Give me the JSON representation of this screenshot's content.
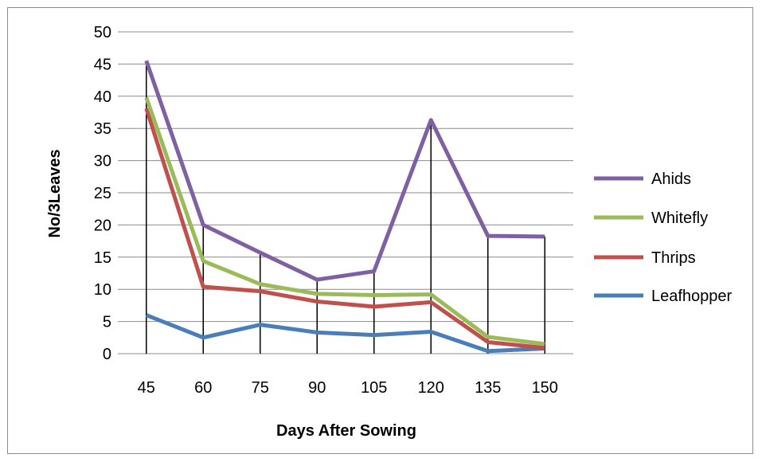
{
  "chart_data": {
    "type": "line",
    "title": "",
    "xlabel": "Days After Sowing",
    "ylabel": "No/3Leaves",
    "categories": [
      "45",
      "60",
      "75",
      "90",
      "105",
      "120",
      "135",
      "150"
    ],
    "ylim": [
      0,
      50
    ],
    "yticks": [
      "0",
      "5",
      "10",
      "15",
      "20",
      "25",
      "30",
      "35",
      "40",
      "45",
      "50"
    ],
    "grid": true,
    "legend": "right",
    "series": [
      {
        "name": "Ahids",
        "color": "#7f60a2",
        "values": [
          45.5,
          20,
          15.7,
          11.5,
          12.8,
          36.3,
          18.3,
          18.2
        ]
      },
      {
        "name": "Whitefly",
        "color": "#9bbb59",
        "values": [
          39.8,
          14.4,
          10.8,
          9.3,
          9.1,
          9.2,
          2.6,
          1.5
        ]
      },
      {
        "name": "Thrips",
        "color": "#c0504d",
        "values": [
          38.1,
          10.4,
          9.7,
          8.1,
          7.3,
          8.0,
          1.8,
          0.9
        ]
      },
      {
        "name": "Leafhopper",
        "color": "#4a7ebb",
        "values": [
          6.0,
          2.5,
          4.5,
          3.3,
          2.9,
          3.4,
          0.4,
          0.8
        ]
      }
    ]
  }
}
